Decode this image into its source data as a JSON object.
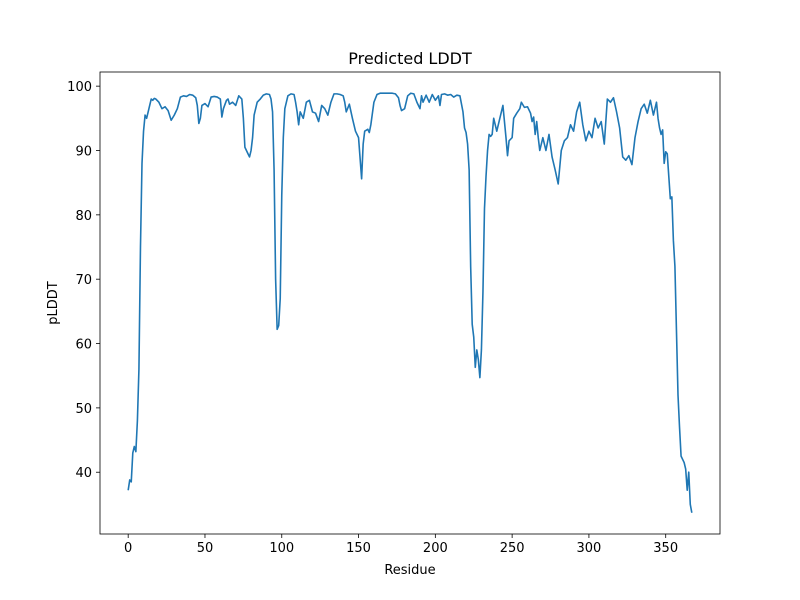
{
  "chart_data": {
    "type": "line",
    "title": "Predicted LDDT",
    "x_label": "Residue",
    "y_label": "pLDDT",
    "xlim": [
      -18.35,
      385.35
    ],
    "ylim": [
      30.4,
      102.2
    ],
    "xticks": [
      0,
      50,
      100,
      150,
      200,
      250,
      300,
      350
    ],
    "yticks": [
      40,
      50,
      60,
      70,
      80,
      90,
      100
    ],
    "grid": false,
    "series": [
      {
        "color": "#1f77b4",
        "x": [
          0,
          1,
          2,
          3,
          4,
          5,
          6,
          7,
          8,
          9,
          10,
          11,
          12,
          13,
          14,
          15,
          16,
          17,
          18,
          20,
          22,
          24,
          26,
          28,
          30,
          32,
          34,
          36,
          38,
          40,
          42,
          44,
          45,
          46,
          47,
          48,
          50,
          52,
          54,
          56,
          58,
          60,
          61,
          62,
          64,
          65,
          66,
          68,
          70,
          72,
          74,
          75,
          76,
          78,
          79,
          80,
          81,
          82,
          84,
          86,
          88,
          90,
          92,
          93,
          94,
          95,
          96,
          97,
          98,
          99,
          100,
          101,
          102,
          104,
          106,
          108,
          109,
          110,
          111,
          112,
          114,
          116,
          118,
          120,
          122,
          124,
          126,
          128,
          130,
          132,
          134,
          136,
          138,
          140,
          141,
          142,
          144,
          146,
          148,
          150,
          152,
          153,
          154,
          156,
          157,
          158,
          160,
          162,
          164,
          168,
          172,
          174,
          176,
          177,
          178,
          180,
          182,
          184,
          186,
          188,
          190,
          191,
          192,
          194,
          196,
          198,
          200,
          202,
          203,
          204,
          206,
          208,
          210,
          212,
          214,
          216,
          218,
          219,
          220,
          221,
          222,
          223,
          224,
          225,
          226,
          227,
          228,
          229,
          230,
          231,
          232,
          233,
          234,
          235,
          236,
          237,
          238,
          239,
          240,
          242,
          244,
          246,
          247,
          248,
          250,
          251,
          253,
          255,
          256,
          258,
          260,
          262,
          263,
          264,
          265,
          266,
          267,
          268,
          270,
          272,
          274,
          276,
          278,
          280,
          282,
          284,
          286,
          288,
          290,
          292,
          294,
          296,
          298,
          300,
          302,
          304,
          306,
          308,
          310,
          312,
          314,
          316,
          318,
          320,
          322,
          324,
          326,
          328,
          330,
          332,
          334,
          336,
          338,
          340,
          342,
          344,
          345,
          346,
          347,
          348,
          349,
          350,
          351,
          352,
          353,
          354,
          355,
          356,
          357,
          358,
          359,
          360,
          362,
          363,
          364,
          365,
          366,
          367
        ],
        "values": [
          37.2,
          38.8,
          38.5,
          43,
          44,
          43.2,
          48,
          56,
          75,
          88,
          93,
          95.5,
          95,
          96,
          97,
          98,
          97.8,
          98.1,
          98,
          97.5,
          96.5,
          96.8,
          96.2,
          94.7,
          95.5,
          96.5,
          98.3,
          98.5,
          98.4,
          98.7,
          98.6,
          98.2,
          97,
          94.2,
          95,
          97,
          97.3,
          96.8,
          98.3,
          98.4,
          98.3,
          98,
          95.2,
          96.5,
          97.8,
          98,
          97.2,
          97.5,
          97,
          98.5,
          98,
          95,
          90.5,
          89.5,
          89,
          90,
          92,
          95.5,
          97.5,
          98,
          98.6,
          98.8,
          98.7,
          98,
          96,
          87,
          70,
          62.2,
          62.8,
          67,
          83,
          92,
          96.5,
          98.5,
          98.8,
          98.7,
          97.5,
          96,
          94,
          96,
          95,
          97.5,
          97.8,
          96,
          95.8,
          94.5,
          97,
          96.5,
          95.5,
          97.5,
          98.8,
          98.8,
          98.7,
          98.5,
          97.5,
          96,
          97.2,
          95,
          93,
          92,
          85.6,
          91,
          93,
          93.3,
          92.8,
          94,
          97.5,
          98.7,
          98.9,
          98.9,
          98.9,
          98.8,
          98.2,
          97,
          96.2,
          96.5,
          98.5,
          98.9,
          98.8,
          97.5,
          96.5,
          98.5,
          97.5,
          98.6,
          97.5,
          98.7,
          97.8,
          98.5,
          97,
          98.7,
          98.8,
          98.6,
          98.7,
          98.3,
          98.6,
          98.5,
          96,
          93.5,
          92.8,
          91,
          87,
          72,
          63,
          61,
          56.3,
          59,
          57.5,
          54.7,
          59,
          68,
          81,
          86,
          90,
          92.5,
          92.2,
          92.5,
          95,
          94,
          93,
          95,
          97,
          92,
          89.2,
          91.5,
          92,
          95,
          95.8,
          96.5,
          97.5,
          96.7,
          96.8,
          95.8,
          94.5,
          95.2,
          92.5,
          94.5,
          92,
          90,
          92,
          90,
          92.5,
          89,
          87,
          84.8,
          90,
          91.5,
          92,
          94,
          93,
          96,
          97.5,
          94,
          91.5,
          93,
          92,
          95,
          93.5,
          94.5,
          91,
          98,
          97.5,
          98.2,
          96,
          93.5,
          89,
          88.5,
          89.2,
          87.8,
          92,
          94.5,
          96.5,
          97.2,
          95.8,
          97.8,
          95.5,
          97.5,
          95,
          93.5,
          92.5,
          93.2,
          88,
          89.8,
          89.5,
          86,
          82.5,
          82.8,
          76,
          72,
          62,
          52,
          47,
          42.5,
          41.5,
          40.5,
          37.2,
          40,
          35,
          33.7
        ]
      }
    ]
  }
}
